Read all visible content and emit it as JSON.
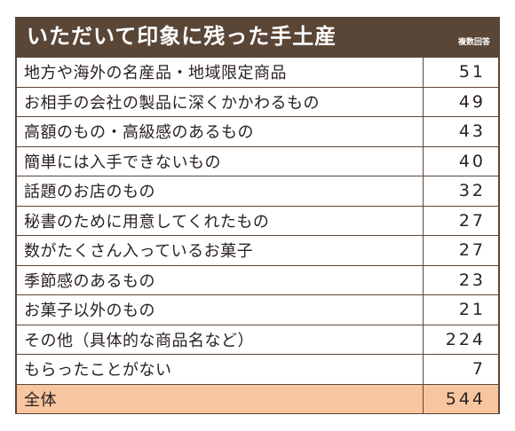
{
  "chart_data": {
    "type": "table",
    "title": "いただいて印象に残った手土産",
    "note": "複数回答",
    "rows": [
      {
        "label": "地方や海外の名産品・地域限定商品",
        "value": 51
      },
      {
        "label": "お相手の会社の製品に深くかかわるもの",
        "value": 49
      },
      {
        "label": "高額のもの・高級感のあるもの",
        "value": 43
      },
      {
        "label": "簡単には入手できないもの",
        "value": 40
      },
      {
        "label": "話題のお店のもの",
        "value": 32
      },
      {
        "label": "秘書のために用意してくれたもの",
        "value": 27
      },
      {
        "label": "数がたくさん入っているお菓子",
        "value": 27
      },
      {
        "label": "季節感のあるもの",
        "value": 23
      },
      {
        "label": "お菓子以外のもの",
        "value": 21
      },
      {
        "label": "その他（具体的な商品名など）",
        "value": 224
      },
      {
        "label": "もらったことがない",
        "value": 7
      }
    ],
    "total": {
      "label": "全体",
      "value": 544
    }
  },
  "colors": {
    "header": "#5a4637",
    "border": "#5b4636",
    "total_row": "#f7c6a0",
    "text": "#2a2220"
  }
}
